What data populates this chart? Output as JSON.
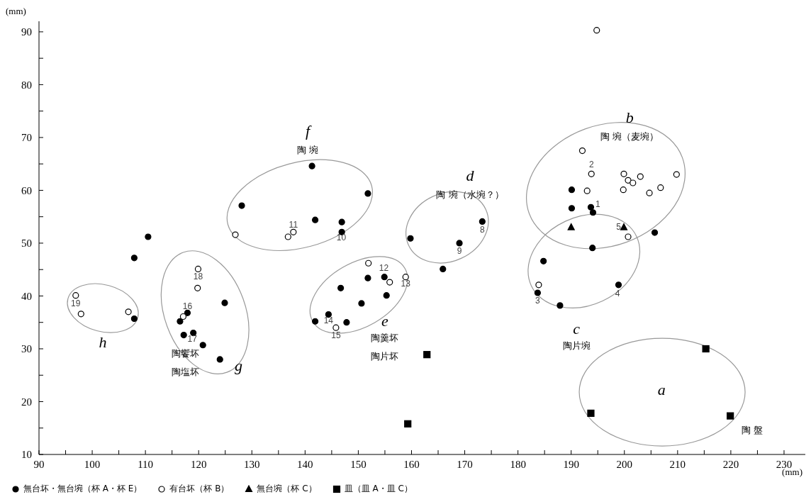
{
  "chart_data": {
    "type": "scatter",
    "xlabel": "(mm)",
    "ylabel": "(mm)",
    "xlim": [
      90,
      234
    ],
    "ylim": [
      10,
      92
    ],
    "xticks": [
      90,
      {
        "value": 95,
        "label": null
      },
      100,
      {
        "value": 105,
        "label": null
      },
      110,
      {
        "value": 115,
        "label": null
      },
      120,
      {
        "value": 125,
        "label": null
      },
      130,
      {
        "value": 135,
        "label": null
      },
      140,
      {
        "value": 145,
        "label": null
      },
      150,
      {
        "value": 155,
        "label": null
      },
      160,
      {
        "value": 165,
        "label": null
      },
      170,
      {
        "value": 175,
        "label": null
      },
      180,
      {
        "value": 185,
        "label": null
      },
      190,
      {
        "value": 195,
        "label": null
      },
      200,
      {
        "value": 205,
        "label": null
      },
      210,
      {
        "value": 215,
        "label": null
      },
      220,
      {
        "value": 225,
        "label": null
      },
      230
    ],
    "yticks": [
      10,
      {
        "value": 15,
        "label": null
      },
      20,
      {
        "value": 25,
        "label": null
      },
      30,
      {
        "value": 35,
        "label": null
      },
      40,
      {
        "value": 45,
        "label": null
      },
      50,
      {
        "value": 55,
        "label": null
      },
      60,
      {
        "value": 65,
        "label": null
      },
      70,
      {
        "value": 75,
        "label": null
      },
      80,
      {
        "value": 85,
        "label": null
      },
      90
    ],
    "grid": false,
    "legend": "bottom left",
    "series": [
      {
        "name": "無台坏・無台埦（杯 A・杯 E）",
        "color": "#000000",
        "marker": "circle",
        "x": [
          141.3,
          151.8,
          128.1,
          141.9,
          146.9,
          146.9,
          110.5,
          107.9,
          107.9,
          124.9,
          117.9,
          116.5,
          117.2,
          119.0,
          120.8,
          124.0,
          146.7,
          151.8,
          154.9,
          155.3,
          150.6,
          144.4,
          141.9,
          147.8,
          159.8,
          169.0,
          173.3,
          165.9,
          190.1,
          190.1,
          193.7,
          194.1,
          205.7,
          194.0,
          184.8,
          183.7,
          187.9,
          198.9
        ],
        "values": [
          64.6,
          59.4,
          57.1,
          54.4,
          54.0,
          52.1,
          51.2,
          47.2,
          35.7,
          38.7,
          36.8,
          35.2,
          32.6,
          33.0,
          30.7,
          28.0,
          41.5,
          43.4,
          43.6,
          40.1,
          38.6,
          36.5,
          35.2,
          35.0,
          50.9,
          50.0,
          54.1,
          45.1,
          60.1,
          56.6,
          56.8,
          55.8,
          52.0,
          49.1,
          46.6,
          40.6,
          38.2,
          42.1
        ]
      },
      {
        "name": "有台坏（杯 B）",
        "color": "#ffffff",
        "marker": "circle",
        "x": [
          194.8,
          126.9,
          136.8,
          137.8,
          96.9,
          97.9,
          106.8,
          119.9,
          119.8,
          117.1,
          151.9,
          155.9,
          158.9,
          145.8,
          192.1,
          193.8,
          193.0,
          199.9,
          200.7,
          201.6,
          203.0,
          199.8,
          204.7,
          206.8,
          209.8,
          200.7,
          183.9
        ],
        "values": [
          90.3,
          51.6,
          51.2,
          52.1,
          40.1,
          36.6,
          37.0,
          45.1,
          41.5,
          36.1,
          46.2,
          42.6,
          43.6,
          34.0,
          67.5,
          63.1,
          59.9,
          63.1,
          61.9,
          61.4,
          62.6,
          60.1,
          59.5,
          60.5,
          63.0,
          51.2,
          42.1
        ]
      },
      {
        "name": "無台埦（杯 C）",
        "color": "#000000",
        "marker": "triangle",
        "x": [
          190.0,
          199.9
        ],
        "values": [
          53.0,
          53.0
        ]
      },
      {
        "name": "皿（皿 A・皿 C）",
        "color": "#000000",
        "marker": "square",
        "x": [
          162.9,
          159.3,
          193.7,
          215.3,
          219.9
        ],
        "values": [
          28.9,
          15.8,
          17.8,
          30.0,
          17.3
        ]
      }
    ],
    "annotations": [
      "a",
      "b",
      "c",
      "d",
      "e",
      "f",
      "g",
      "h",
      "陶 盤",
      "陶 埦（麦埦）",
      "陶片埦",
      "陶 埦（水埦？）",
      "陶羹坏",
      "陶片坏",
      "陶 埦",
      "陶饗坏",
      "陶塩坏",
      "1",
      "2",
      "3",
      "4",
      "5",
      "8",
      "9",
      "10",
      "11",
      "12",
      "13",
      "14",
      "15",
      "16",
      "17",
      "18",
      "19"
    ]
  }
}
